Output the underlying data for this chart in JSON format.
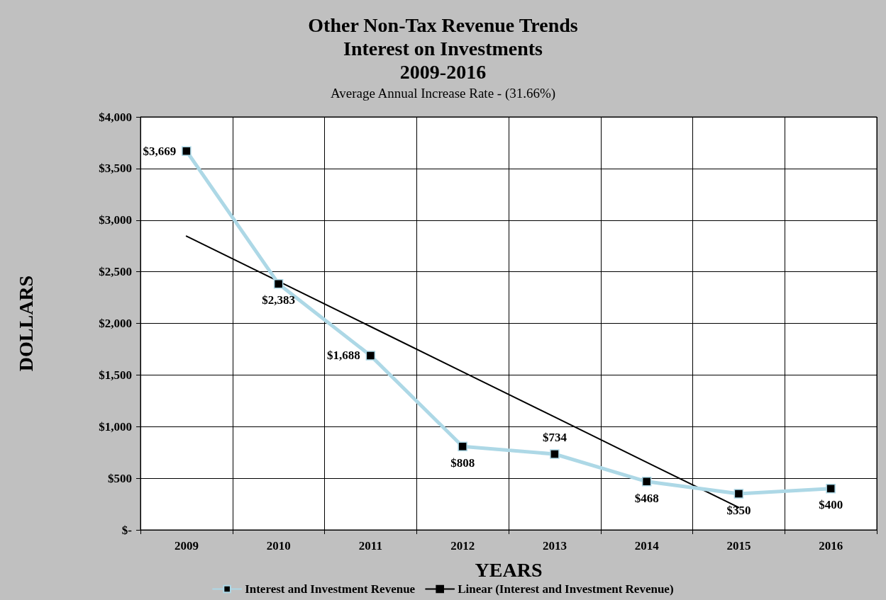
{
  "chart_data": {
    "type": "line",
    "title": "Other Non-Tax Revenue Trends\nInterest on Investments\n2009-2016",
    "subtitle": "Average Annual Increase Rate - (31.66%)",
    "xlabel": "YEARS",
    "ylabel": "DOLLARS",
    "categories": [
      "2009",
      "2010",
      "2011",
      "2012",
      "2013",
      "2014",
      "2015",
      "2016"
    ],
    "series": [
      {
        "name": "Interest and Investment Revenue",
        "color": "#add8e6",
        "marker": "square",
        "values": [
          3669,
          2383,
          1688,
          808,
          734,
          468,
          350,
          400
        ],
        "value_labels": [
          "$3,669",
          "$2,383",
          "$1,688",
          "$808",
          "$734",
          "$468",
          "$350",
          "$400"
        ]
      },
      {
        "name": "Linear (Interest and Investment Revenue)",
        "color": "#000000",
        "marker": "none",
        "values": [
          2845,
          2407,
          1969,
          1531,
          1093,
          655,
          217,
          null
        ]
      }
    ],
    "ylim": [
      0,
      4000
    ],
    "yticks": [
      {
        "value": 0,
        "label": "$-"
      },
      {
        "value": 500,
        "label": "$500"
      },
      {
        "value": 1000,
        "label": "$1,000"
      },
      {
        "value": 1500,
        "label": "$1,500"
      },
      {
        "value": 2000,
        "label": "$2,000"
      },
      {
        "value": 2500,
        "label": "$2,500"
      },
      {
        "value": 3000,
        "label": "$3,000"
      },
      {
        "value": 3500,
        "label": "$3,500"
      },
      {
        "value": 4000,
        "label": "$4,000"
      }
    ],
    "grid": true,
    "legend": "bottom"
  }
}
